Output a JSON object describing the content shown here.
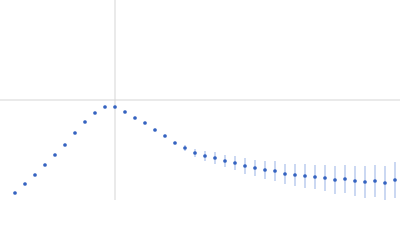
{
  "chart_data": {
    "type": "scatter",
    "series": [
      {
        "color": "#3563c0",
        "error_color": "#a8bfea",
        "x": [
          15,
          25,
          35,
          45,
          55,
          65,
          75,
          85,
          95,
          105,
          115,
          125,
          135,
          145,
          155,
          165,
          175,
          185,
          195,
          205,
          215,
          225,
          235,
          245,
          255,
          265,
          275,
          285,
          295,
          305,
          315,
          325,
          335,
          345,
          355,
          365,
          375,
          385,
          395
        ],
        "values": [
          7,
          16,
          25,
          35,
          45,
          55,
          67,
          78,
          87,
          93,
          93,
          88,
          82,
          77,
          70,
          64,
          57,
          52,
          47,
          44,
          42,
          39,
          37,
          34,
          32,
          30,
          29,
          26,
          25,
          24,
          23,
          22,
          20,
          21,
          19,
          18,
          19,
          17,
          20
        ],
        "errors": [
          1,
          1,
          1,
          1,
          1,
          1,
          1,
          1,
          1,
          1,
          1,
          1,
          1,
          1,
          1,
          1,
          1,
          3,
          4,
          5,
          6,
          6,
          7,
          8,
          8,
          9,
          10,
          10,
          11,
          12,
          12,
          13,
          14,
          14,
          15,
          16,
          16,
          17,
          18
        ]
      }
    ],
    "xlim": [
      0,
      400
    ],
    "ylim": [
      0,
      200
    ],
    "xticks": [
      115
    ],
    "yticks": [
      100
    ],
    "grid": true
  }
}
